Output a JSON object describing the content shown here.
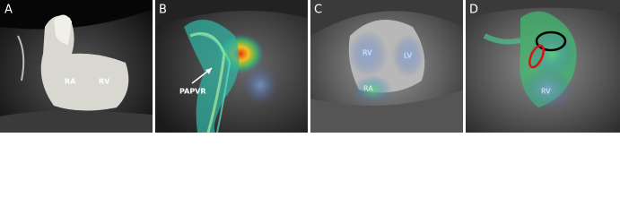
{
  "panels": [
    {
      "label": "A",
      "annotations": [
        "RA",
        "RV"
      ]
    },
    {
      "label": "B",
      "annotations": [
        "PAPVR"
      ]
    },
    {
      "label": "C",
      "annotations": [
        "RV",
        "LV",
        "RA"
      ]
    },
    {
      "label": "D",
      "annotations": [
        "RV"
      ]
    }
  ]
}
